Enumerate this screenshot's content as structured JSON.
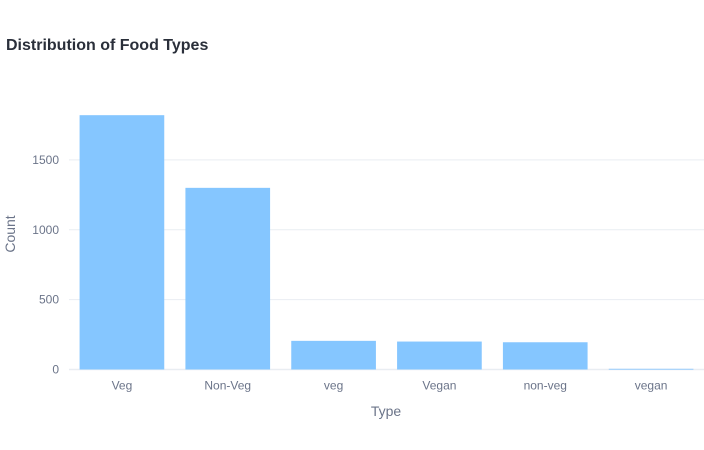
{
  "chart_data": {
    "type": "bar",
    "title": "Distribution of Food Types",
    "xlabel": "Type",
    "ylabel": "Count",
    "categories": [
      "Veg",
      "Non-Veg",
      "veg",
      "Vegan",
      "non-veg",
      "vegan"
    ],
    "values": [
      1820,
      1300,
      205,
      200,
      195,
      5
    ],
    "ylim": [
      0,
      1900
    ],
    "yticks": [
      0,
      500,
      1000,
      1500
    ],
    "grid": true,
    "bar_color": "#85c6ff",
    "legend": "none"
  }
}
